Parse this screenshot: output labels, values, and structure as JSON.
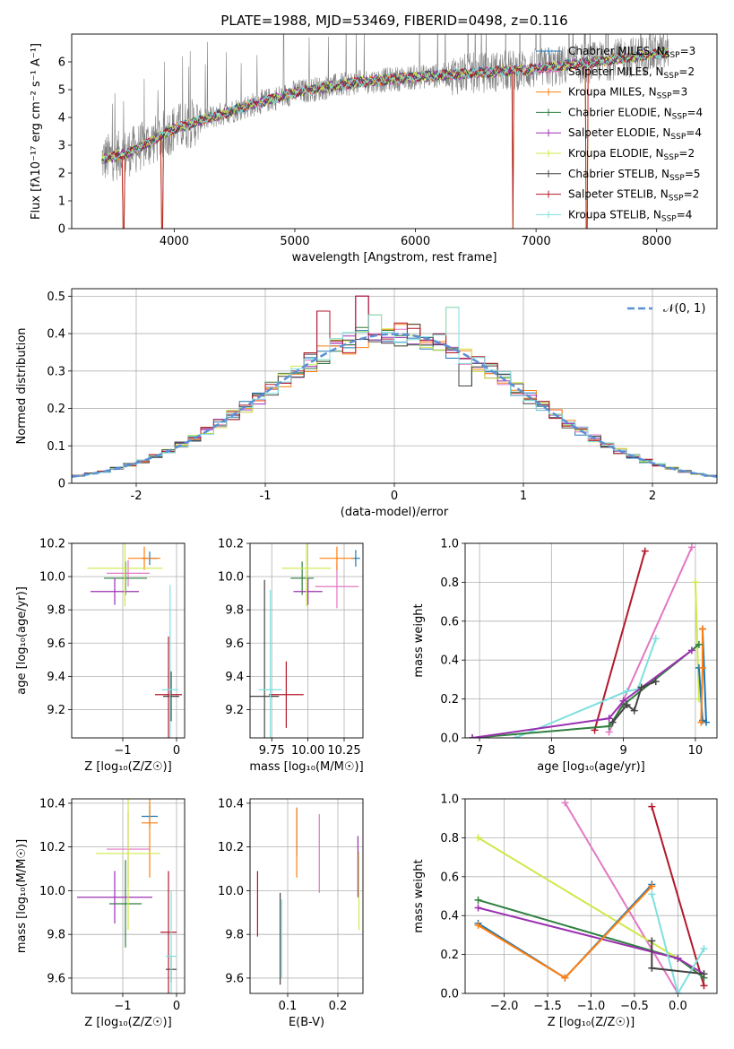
{
  "figure": {
    "title": "PLATE=1988, MJD=53469, FIBERID=0498, z=0.116"
  },
  "colors": {
    "c_miles": "#1f77b4",
    "s_miles": "#e377c2",
    "k_miles": "#ff7f0e",
    "c_elodie": "#2f7f3f",
    "s_elodie": "#9b30b0",
    "k_elodie": "#cfe84a",
    "c_stelib": "#444444",
    "s_stelib": "#b2182b",
    "k_stelib": "#7fdfdf",
    "gaussian": "#5b8fd6",
    "data_grey": "#808080"
  },
  "chart_data": [
    {
      "id": "spectrum",
      "type": "line",
      "xlabel": "wavelength [Angstrom, rest frame]",
      "ylabel": "Flux [fλ10⁻¹⁷ erg cm⁻² s⁻¹ A⁻¹]",
      "xlim": [
        3150,
        8500
      ],
      "ylim": [
        0,
        7
      ],
      "xticks": [
        4000,
        5000,
        6000,
        7000,
        8000
      ],
      "yticks": [
        0,
        1,
        2,
        3,
        4,
        5,
        6
      ],
      "grid": false,
      "legend_position": "right",
      "legend": [
        {
          "key": "c_miles",
          "label": "Chabrier MILES, N",
          "sub": "SSP",
          "tail": "=3"
        },
        {
          "key": "s_miles",
          "label": "Salpeter MILES, N",
          "sub": "SSP",
          "tail": "=2"
        },
        {
          "key": "k_miles",
          "label": "Kroupa MILES, N",
          "sub": "SSP",
          "tail": "=3"
        },
        {
          "key": "c_elodie",
          "label": "Chabrier ELODIE, N",
          "sub": "SSP",
          "tail": "=4"
        },
        {
          "key": "s_elodie",
          "label": "Salpeter ELODIE, N",
          "sub": "SSP",
          "tail": "=4"
        },
        {
          "key": "k_elodie",
          "label": "Kroupa ELODIE, N",
          "sub": "SSP",
          "tail": "=2"
        },
        {
          "key": "c_stelib",
          "label": "Chabrier STELIB, N",
          "sub": "SSP",
          "tail": "=5"
        },
        {
          "key": "s_stelib",
          "label": "Salpeter STELIB, N",
          "sub": "SSP",
          "tail": "=2"
        },
        {
          "key": "k_stelib",
          "label": "Kroupa STELIB, N",
          "sub": "SSP",
          "tail": "=4"
        }
      ],
      "continuum": [
        [
          3400,
          2.5
        ],
        [
          3600,
          2.7
        ],
        [
          3800,
          3.1
        ],
        [
          4000,
          3.6
        ],
        [
          4300,
          4.0
        ],
        [
          4600,
          4.4
        ],
        [
          5000,
          4.9
        ],
        [
          5500,
          5.25
        ],
        [
          6000,
          5.45
        ],
        [
          6500,
          5.6
        ],
        [
          7000,
          5.75
        ],
        [
          7500,
          6.0
        ],
        [
          8000,
          6.3
        ],
        [
          8100,
          6.35
        ]
      ],
      "dips": [
        [
          3580,
          0
        ],
        [
          3900,
          0
        ],
        [
          6810,
          0
        ],
        [
          7420,
          0
        ]
      ]
    },
    {
      "id": "residuals",
      "type": "histogram",
      "xlabel": "(data-model)/error",
      "ylabel": "Normed distribution",
      "xlim": [
        -2.5,
        2.5
      ],
      "ylim": [
        0,
        0.52
      ],
      "xticks": [
        -2,
        -1,
        0,
        1,
        2
      ],
      "yticks": [
        0,
        0.1,
        0.2,
        0.3,
        0.4,
        0.5
      ],
      "grid": true,
      "bins": 50,
      "spikes": [
        [
          -0.55,
          0.46
        ],
        [
          -0.25,
          0.5
        ],
        [
          -0.15,
          0.45
        ],
        [
          0.45,
          0.47
        ],
        [
          0.55,
          0.26
        ]
      ],
      "legend": [
        {
          "key": "gaussian",
          "label": "𝒩(0, 1)"
        }
      ]
    },
    {
      "id": "age_vs_Z",
      "type": "scatter",
      "xlabel": "Z [log₁₀(Z/Z☉)]",
      "ylabel": "age  [log₁₀(age/yr)]",
      "xlim": [
        -1.95,
        0.15
      ],
      "ylim": [
        9.03,
        10.2
      ],
      "xticks": [
        -1,
        0
      ],
      "yticks": [
        9.2,
        9.4,
        9.6,
        9.8,
        10.0,
        10.2
      ],
      "xticklabels": [
        "−1",
        "0"
      ],
      "yticklabels": [
        "9.2",
        "9.4",
        "9.6",
        "9.8",
        "10.0",
        "10.2"
      ],
      "points": [
        {
          "key": "c_miles",
          "x": -0.5,
          "xerr": 0.15,
          "y": 10.11,
          "yerr": 0.04
        },
        {
          "key": "s_miles",
          "x": -0.9,
          "xerr": 0.4,
          "y": 10.02,
          "yerr": 0.08
        },
        {
          "key": "k_miles",
          "x": -0.6,
          "xerr": 0.3,
          "y": 10.11,
          "yerr": 0.07
        },
        {
          "key": "c_elodie",
          "x": -0.95,
          "xerr": 0.4,
          "y": 9.99,
          "yerr": 0.1
        },
        {
          "key": "s_elodie",
          "x": -1.15,
          "xerr": 0.45,
          "y": 9.91,
          "yerr": 0.08
        },
        {
          "key": "k_elodie",
          "x": -0.96,
          "xerr": 0.7,
          "y": 10.05,
          "yerr": 0.23
        },
        {
          "key": "c_stelib",
          "x": -0.1,
          "xerr": 0.15,
          "y": 9.28,
          "yerr": 0.15
        },
        {
          "key": "s_stelib",
          "x": -0.15,
          "xerr": 0.25,
          "y": 9.29,
          "yerr": 0.35
        },
        {
          "key": "k_stelib",
          "x": -0.12,
          "xerr": 0.15,
          "y": 9.32,
          "yerr": 0.63
        }
      ]
    },
    {
      "id": "age_vs_mass",
      "type": "scatter",
      "xlabel": "mass [log₁₀(M/M☉)]",
      "ylabel": "",
      "xlim": [
        9.6,
        10.38
      ],
      "ylim": [
        9.03,
        10.2
      ],
      "xticks": [
        9.75,
        10.0,
        10.25
      ],
      "yticks": [
        9.2,
        9.4,
        9.6,
        9.8,
        10.0,
        10.2
      ],
      "xticklabels": [
        "9.75",
        "10.00",
        "10.25"
      ],
      "yticklabels": [
        "9.2",
        "9.4",
        "9.6",
        "9.8",
        "10.0",
        "10.2"
      ],
      "points": [
        {
          "key": "c_miles",
          "x": 10.33,
          "xerr": 0.03,
          "y": 10.11,
          "yerr": 0.05
        },
        {
          "key": "s_miles",
          "x": 10.2,
          "xerr": 0.15,
          "y": 9.94,
          "yerr": 0.13
        },
        {
          "key": "k_miles",
          "x": 10.2,
          "xerr": 0.12,
          "y": 10.11,
          "yerr": 0.07
        },
        {
          "key": "c_elodie",
          "x": 9.96,
          "xerr": 0.08,
          "y": 9.99,
          "yerr": 0.1
        },
        {
          "key": "s_elodie",
          "x": 10.0,
          "xerr": 0.1,
          "y": 9.91,
          "yerr": 0.08
        },
        {
          "key": "k_elodie",
          "x": 9.99,
          "xerr": 0.17,
          "y": 10.05,
          "yerr": 0.23
        },
        {
          "key": "c_stelib",
          "x": 9.7,
          "xerr": 0.1,
          "y": 9.28,
          "yerr": 0.7
        },
        {
          "key": "s_stelib",
          "x": 9.85,
          "xerr": 0.12,
          "y": 9.29,
          "yerr": 0.2
        },
        {
          "key": "k_stelib",
          "x": 9.74,
          "xerr": 0.08,
          "y": 9.32,
          "yerr": 0.6
        }
      ]
    },
    {
      "id": "weight_vs_age",
      "type": "line",
      "xlabel": "age  [log₁₀(age/yr)]",
      "ylabel": "mass weight",
      "xlim": [
        6.8,
        10.3
      ],
      "ylim": [
        0,
        1.0
      ],
      "xticks": [
        7,
        8,
        9,
        10
      ],
      "yticks": [
        0.0,
        0.2,
        0.4,
        0.6,
        0.8,
        1.0
      ],
      "xticklabels": [
        "7",
        "8",
        "9",
        "10"
      ],
      "yticklabels": [
        "0.0",
        "0.2",
        "0.4",
        "0.6",
        "0.8",
        "1.0"
      ],
      "series": [
        {
          "key": "s_stelib",
          "points": [
            [
              8.6,
              0.04
            ],
            [
              9.3,
              0.96
            ]
          ]
        },
        {
          "key": "s_miles",
          "points": [
            [
              8.8,
              0.03
            ],
            [
              9.95,
              0.98
            ]
          ]
        },
        {
          "key": "k_elodie",
          "points": [
            [
              10.05,
              0.2
            ],
            [
              10.0,
              0.8
            ]
          ]
        },
        {
          "key": "k_stelib",
          "points": [
            [
              7.5,
              0.0
            ],
            [
              9.05,
              0.24
            ],
            [
              9.2,
              0.25
            ],
            [
              9.45,
              0.51
            ]
          ]
        },
        {
          "key": "c_miles",
          "points": [
            [
              10.05,
              0.36
            ],
            [
              10.1,
              0.09
            ],
            [
              10.15,
              0.08
            ],
            [
              10.1,
              0.56
            ]
          ]
        },
        {
          "key": "k_miles",
          "points": [
            [
              10.08,
              0.08
            ],
            [
              10.1,
              0.36
            ],
            [
              10.1,
              0.56
            ]
          ]
        },
        {
          "key": "c_elodie",
          "points": [
            [
              6.9,
              0.0
            ],
            [
              8.8,
              0.06
            ],
            [
              9.0,
              0.17
            ],
            [
              10.05,
              0.48
            ]
          ]
        },
        {
          "key": "s_elodie",
          "points": [
            [
              6.9,
              0.0
            ],
            [
              8.8,
              0.1
            ],
            [
              9.0,
              0.19
            ],
            [
              9.95,
              0.45
            ]
          ]
        },
        {
          "key": "c_stelib",
          "points": [
            [
              8.85,
              0.08
            ],
            [
              9.05,
              0.17
            ],
            [
              9.15,
              0.14
            ],
            [
              9.25,
              0.26
            ],
            [
              9.45,
              0.29
            ]
          ]
        }
      ]
    },
    {
      "id": "mass_vs_Z",
      "type": "scatter",
      "xlabel": "Z [log₁₀(Z/Z☉)]",
      "ylabel": "mass [log₁₀(M/M☉)]",
      "xlim": [
        -1.95,
        0.15
      ],
      "ylim": [
        9.53,
        10.42
      ],
      "xticks": [
        -1,
        0
      ],
      "yticks": [
        9.6,
        9.8,
        10.0,
        10.2,
        10.4
      ],
      "xticklabels": [
        "−1",
        "0"
      ],
      "yticklabels": [
        "9.6",
        "9.8",
        "10.0",
        "10.2",
        "10.4"
      ],
      "points": [
        {
          "key": "c_miles",
          "x": -0.5,
          "xerr": 0.15,
          "y": 10.34,
          "yerr": 0.05
        },
        {
          "key": "s_miles",
          "x": -0.9,
          "xerr": 0.4,
          "y": 10.19,
          "yerr": 0.17
        },
        {
          "key": "k_miles",
          "x": -0.5,
          "xerr": 0.15,
          "y": 10.31,
          "yerr": 0.25
        },
        {
          "key": "c_elodie",
          "x": -0.95,
          "xerr": 0.3,
          "y": 9.94,
          "yerr": 0.2
        },
        {
          "key": "s_elodie",
          "x": -1.15,
          "xerr": 0.7,
          "y": 9.97,
          "yerr": 0.12
        },
        {
          "key": "k_elodie",
          "x": -0.9,
          "xerr": 0.6,
          "y": 10.17,
          "yerr": 0.35
        },
        {
          "key": "c_stelib",
          "x": -0.1,
          "xerr": 0.1,
          "y": 9.64,
          "yerr": 0.06
        },
        {
          "key": "s_stelib",
          "x": -0.15,
          "xerr": 0.15,
          "y": 9.81,
          "yerr": 0.28
        },
        {
          "key": "k_stelib",
          "x": -0.1,
          "xerr": 0.1,
          "y": 9.7,
          "yerr": 0.3
        }
      ]
    },
    {
      "id": "mass_vs_EBV",
      "type": "scatter",
      "xlabel": "E(B-V)",
      "ylabel": "",
      "xlim": [
        0.025,
        0.25
      ],
      "ylim": [
        9.53,
        10.42
      ],
      "xticks": [
        0.1,
        0.2
      ],
      "yticks": [
        9.6,
        9.8,
        10.0,
        10.2,
        10.4
      ],
      "xticklabels": [
        "0.1",
        "0.2"
      ],
      "yticklabels": [
        "9.6",
        "9.8",
        "10.0",
        "10.2",
        "10.4"
      ],
      "points": [
        {
          "key": "s_stelib",
          "x": 0.04,
          "y": 9.94,
          "yerr": 0.15
        },
        {
          "key": "c_stelib",
          "x": 0.085,
          "y": 9.78,
          "yerr": 0.21
        },
        {
          "key": "k_stelib",
          "x": 0.088,
          "y": 9.78,
          "yerr": 0.18
        },
        {
          "key": "c_miles",
          "x": 0.118,
          "y": 10.27,
          "yerr": 0.11
        },
        {
          "key": "k_miles",
          "x": 0.118,
          "y": 10.22,
          "yerr": 0.16
        },
        {
          "key": "s_miles",
          "x": 0.163,
          "y": 10.17,
          "yerr": 0.18
        },
        {
          "key": "s_elodie",
          "x": 0.24,
          "y": 10.11,
          "yerr": 0.14
        },
        {
          "key": "k_elodie",
          "x": 0.242,
          "y": 10.0,
          "yerr": 0.18
        }
      ]
    },
    {
      "id": "weight_vs_Z",
      "type": "line",
      "xlabel": "Z [log₁₀(Z/Z☉)]",
      "ylabel": "mass weight",
      "xlim": [
        -2.45,
        0.45
      ],
      "ylim": [
        0,
        1.0
      ],
      "xticks": [
        -2.0,
        -1.5,
        -1.0,
        -0.5,
        0.0
      ],
      "yticks": [
        0.0,
        0.2,
        0.4,
        0.6,
        0.8,
        1.0
      ],
      "xticklabels": [
        "−2.0",
        "−1.5",
        "−1.0",
        "−0.5",
        "0.0"
      ],
      "yticklabels": [
        "0.0",
        "0.2",
        "0.4",
        "0.6",
        "0.8",
        "1.0"
      ],
      "series": [
        {
          "key": "s_miles",
          "points": [
            [
              -1.3,
              0.98
            ],
            [
              0.0,
              0.0
            ]
          ]
        },
        {
          "key": "s_stelib",
          "points": [
            [
              -0.3,
              0.96
            ],
            [
              0.3,
              0.04
            ]
          ]
        },
        {
          "key": "k_elodie",
          "points": [
            [
              -2.3,
              0.8
            ],
            [
              0.0,
              0.18
            ]
          ]
        },
        {
          "key": "c_elodie",
          "points": [
            [
              -2.3,
              0.48
            ],
            [
              0.0,
              0.18
            ],
            [
              0.3,
              0.08
            ]
          ]
        },
        {
          "key": "s_elodie",
          "points": [
            [
              -2.3,
              0.44
            ],
            [
              0.0,
              0.18
            ],
            [
              0.3,
              0.1
            ]
          ]
        },
        {
          "key": "c_miles",
          "points": [
            [
              -2.3,
              0.36
            ],
            [
              -1.3,
              0.08
            ],
            [
              -0.3,
              0.56
            ]
          ]
        },
        {
          "key": "k_miles",
          "points": [
            [
              -2.3,
              0.35
            ],
            [
              -1.3,
              0.08
            ],
            [
              -0.3,
              0.55
            ]
          ]
        },
        {
          "key": "k_stelib",
          "points": [
            [
              -0.3,
              0.51
            ],
            [
              0.0,
              0.0
            ],
            [
              0.3,
              0.23
            ]
          ]
        },
        {
          "key": "c_stelib",
          "points": [
            [
              -0.3,
              0.27
            ],
            [
              -0.3,
              0.13
            ],
            [
              0.3,
              0.1
            ]
          ]
        }
      ]
    }
  ]
}
